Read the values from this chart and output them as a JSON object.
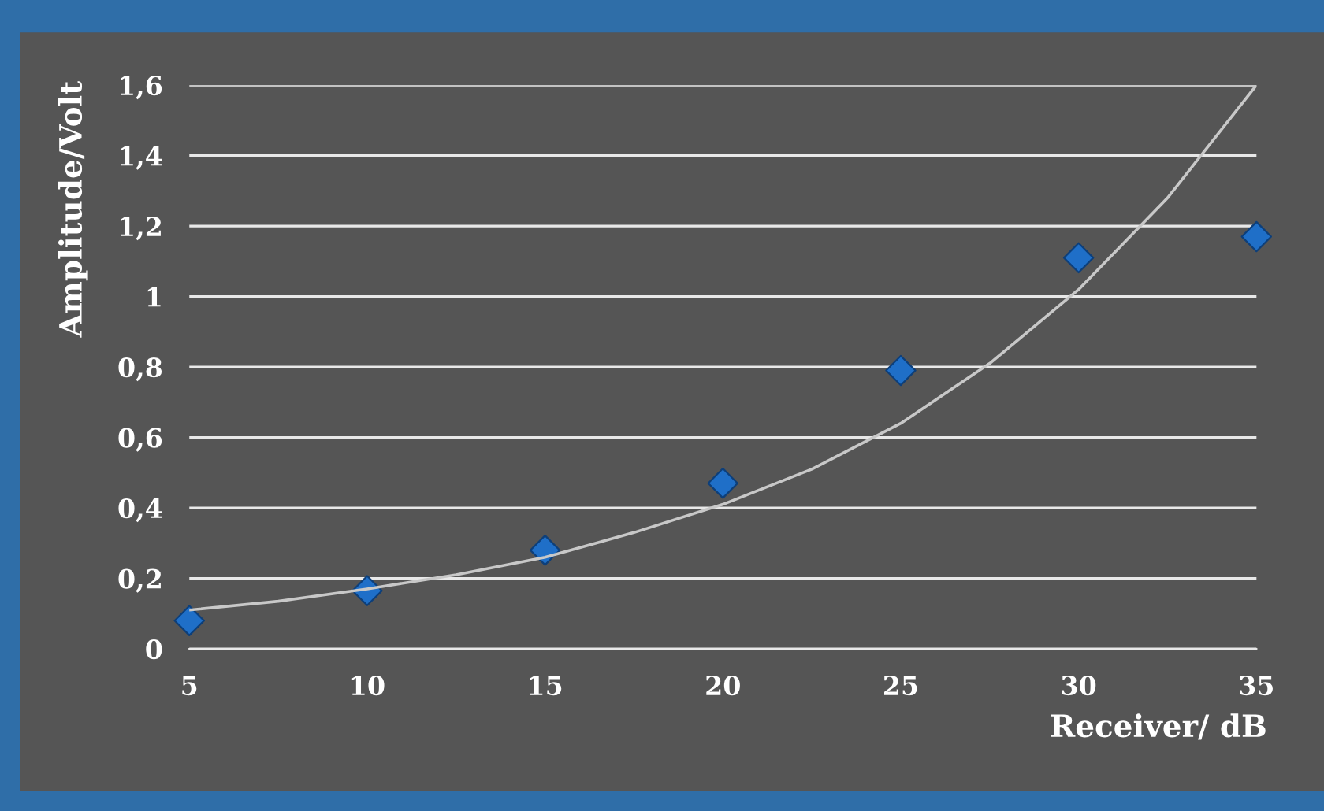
{
  "chart_data": {
    "type": "scatter",
    "xlabel": "Receiver/ dB",
    "ylabel": "Amplitude/Volt",
    "x": [
      5,
      10,
      15,
      20,
      25,
      30,
      35
    ],
    "series": [
      {
        "color": "#1f6fc8",
        "marker": "diamond",
        "values": [
          0.08,
          0.165,
          0.28,
          0.47,
          0.79,
          1.11,
          1.17
        ]
      },
      {
        "type": "line",
        "color": "#c8c8c8",
        "marker": "none",
        "line_style": "solid",
        "x": [
          5,
          7.5,
          10,
          12.5,
          15,
          17.5,
          20,
          22.5,
          25,
          27.5,
          30,
          32.5,
          35
        ],
        "values": [
          0.11,
          0.135,
          0.17,
          0.21,
          0.26,
          0.33,
          0.41,
          0.51,
          0.64,
          0.81,
          1.02,
          1.28,
          1.6
        ]
      }
    ],
    "xlim": [
      5,
      35
    ],
    "xticks": [
      5,
      10,
      15,
      20,
      25,
      30,
      35
    ],
    "ylim": [
      0,
      1.6
    ],
    "yticks": [
      0,
      {
        "value": 0.2,
        "label": "0,2"
      },
      {
        "value": 0.4,
        "label": "0,4"
      },
      {
        "value": 0.6,
        "label": "0,6"
      },
      {
        "value": 0.8,
        "label": "0,8"
      },
      1,
      {
        "value": 1.2,
        "label": "1,2"
      },
      {
        "value": 1.4,
        "label": "1,4"
      },
      {
        "value": 1.6,
        "label": "1,6"
      }
    ],
    "grid": "y",
    "legend": false
  }
}
